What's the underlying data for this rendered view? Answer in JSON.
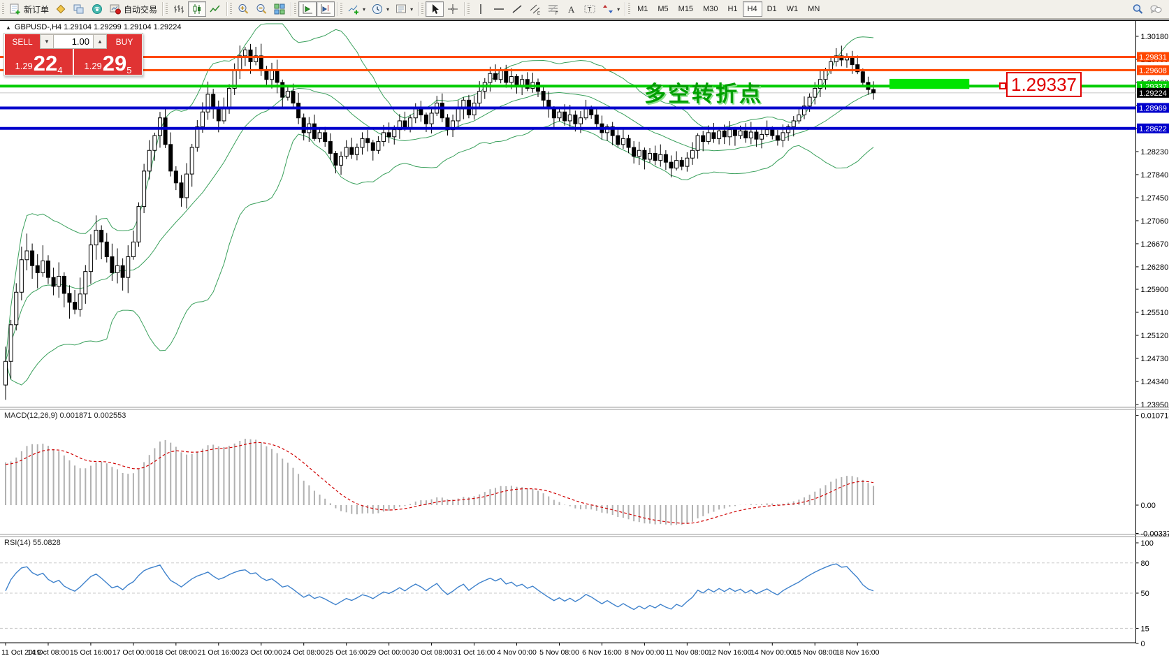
{
  "toolbar": {
    "groups": [
      {
        "items": [
          {
            "name": "new-order-button",
            "icon": "new-order",
            "label": "新订单"
          },
          {
            "name": "metaeditor-button",
            "icon": "metaeditor"
          },
          {
            "name": "charts-button",
            "icon": "charts"
          },
          {
            "name": "signals-button",
            "icon": "signals"
          },
          {
            "name": "autotrading-button",
            "icon": "autotrading",
            "label": "自动交易"
          }
        ]
      },
      {
        "items": [
          {
            "name": "bar-chart-button",
            "icon": "bar-chart"
          },
          {
            "name": "candlestick-button",
            "icon": "candlestick",
            "active": true
          },
          {
            "name": "line-chart-button",
            "icon": "line-chart"
          }
        ]
      },
      {
        "items": [
          {
            "name": "zoom-in-button",
            "icon": "zoom-in"
          },
          {
            "name": "zoom-out-button",
            "icon": "zoom-out"
          },
          {
            "name": "tile-windows-button",
            "icon": "tile-windows"
          }
        ]
      },
      {
        "items": [
          {
            "name": "auto-scroll-button",
            "icon": "auto-scroll",
            "active": true
          },
          {
            "name": "chart-shift-button",
            "icon": "chart-shift",
            "active": true
          }
        ]
      },
      {
        "items": [
          {
            "name": "indicators-button",
            "icon": "indicators",
            "caret": true
          },
          {
            "name": "periods-button",
            "icon": "periods",
            "caret": true
          },
          {
            "name": "templates-button",
            "icon": "templates",
            "caret": true
          }
        ]
      },
      {
        "items": [
          {
            "name": "cursor-button",
            "icon": "cursor",
            "active": true
          },
          {
            "name": "crosshair-button",
            "icon": "crosshair"
          }
        ]
      },
      {
        "items": [
          {
            "name": "vertical-line-button",
            "icon": "vertical-line"
          },
          {
            "name": "horizontal-line-button",
            "icon": "horizontal-line"
          },
          {
            "name": "trendline-button",
            "icon": "trendline"
          },
          {
            "name": "equidistant-channel-button",
            "icon": "equidistant-channel"
          },
          {
            "name": "fibonacci-button",
            "icon": "fibonacci"
          },
          {
            "name": "text-button",
            "icon": "text"
          },
          {
            "name": "text-label-button",
            "icon": "text-label"
          },
          {
            "name": "arrows-button",
            "icon": "arrows",
            "caret": true
          }
        ]
      }
    ],
    "timeframes": [
      "M1",
      "M5",
      "M15",
      "M30",
      "H1",
      "H4",
      "D1",
      "W1",
      "MN"
    ],
    "active_timeframe": "H4",
    "right_icons": [
      {
        "name": "search-button",
        "icon": "search"
      },
      {
        "name": "chat-button",
        "icon": "chat"
      }
    ]
  },
  "symbol_bar": {
    "text": "GBPUSD-,H4  1.29104 1.29299 1.29104 1.29224"
  },
  "trade_panel": {
    "sell_label": "SELL",
    "buy_label": "BUY",
    "volume": "1.00",
    "sell_price_small": "1.29",
    "sell_price_big": "22",
    "sell_price_sup": "4",
    "buy_price_small": "1.29",
    "buy_price_big": "29",
    "buy_price_sup": "5"
  },
  "annotations": {
    "turning_point_text": "多空转折点",
    "price_callout": "1.29337"
  },
  "chart_data": {
    "type": "candlestick",
    "symbol": "GBPUSD-",
    "timeframe": "H4",
    "ohlc_info": {
      "open": "1.29104",
      "high": "1.29299",
      "low": "1.29104",
      "close": "1.29224"
    },
    "y_ticks": [
      1.3018,
      1.2979,
      1.294,
      1.2901,
      1.2862,
      1.2823,
      1.2784,
      1.2745,
      1.2706,
      1.2667,
      1.2628,
      1.259,
      1.2551,
      1.2512,
      1.2473,
      1.2434,
      1.2395
    ],
    "price_levels": [
      {
        "price": 1.29831,
        "color": "#ff4700",
        "width": 3,
        "label_bg": "#ff4700"
      },
      {
        "price": 1.29608,
        "color": "#ff4700",
        "width": 3,
        "label_bg": "#ff4700"
      },
      {
        "price": 1.29337,
        "color": "#00cc00",
        "width": 4,
        "label_bg": "#00cc00"
      },
      {
        "price": 1.29224,
        "color": "#c8c8c8",
        "width": 1,
        "label_bg": "#000000",
        "under": true
      },
      {
        "price": 1.28969,
        "color": "#0000cc",
        "width": 4,
        "label_bg": "#0000cc"
      },
      {
        "price": 1.28622,
        "color": "#0000cc",
        "width": 4,
        "label_bg": "#0000cc"
      }
    ],
    "closes": [
      1.2468,
      1.253,
      1.2585,
      1.264,
      1.2655,
      1.263,
      1.2618,
      1.2638,
      1.261,
      1.2595,
      1.2612,
      1.2583,
      1.2568,
      1.2556,
      1.2582,
      1.262,
      1.2665,
      1.269,
      1.267,
      1.2645,
      1.2618,
      1.263,
      1.261,
      1.2645,
      1.267,
      1.273,
      1.279,
      1.2825,
      1.285,
      1.288,
      1.2835,
      1.279,
      1.277,
      1.2745,
      1.2785,
      1.283,
      1.2865,
      1.289,
      1.292,
      1.2895,
      1.2875,
      1.2895,
      1.293,
      1.296,
      1.2985,
      1.2995,
      1.2975,
      1.2985,
      1.296,
      1.2945,
      1.296,
      1.294,
      1.2915,
      1.2925,
      1.2905,
      1.288,
      1.2855,
      1.287,
      1.2845,
      1.2855,
      1.284,
      1.282,
      1.28,
      1.2815,
      1.283,
      1.2818,
      1.283,
      1.2845,
      1.2838,
      1.2825,
      1.284,
      1.2855,
      1.2848,
      1.286,
      1.2875,
      1.2862,
      1.288,
      1.2895,
      1.2885,
      1.287,
      1.2888,
      1.2905,
      1.288,
      1.286,
      1.2875,
      1.2895,
      1.291,
      1.2885,
      1.2905,
      1.2925,
      1.294,
      1.2955,
      1.2945,
      1.296,
      1.294,
      1.295,
      1.2935,
      1.2945,
      1.293,
      1.294,
      1.2925,
      1.291,
      1.2895,
      1.288,
      1.289,
      1.2875,
      1.2885,
      1.287,
      1.288,
      1.2895,
      1.2885,
      1.287,
      1.2855,
      1.2865,
      1.285,
      1.2835,
      1.2845,
      1.283,
      1.2815,
      1.2825,
      1.281,
      1.282,
      1.2808,
      1.2818,
      1.2805,
      1.2795,
      1.2808,
      1.2798,
      1.2812,
      1.2825,
      1.285,
      1.284,
      1.2855,
      1.2845,
      1.2858,
      1.2848,
      1.286,
      1.285,
      1.2858,
      1.2846,
      1.2856,
      1.2844,
      1.2852,
      1.286,
      1.285,
      1.2842,
      1.2855,
      1.2865,
      1.2875,
      1.2885,
      1.29,
      1.2915,
      1.293,
      1.2945,
      1.296,
      1.2975,
      1.2985,
      1.2978,
      1.2982,
      1.297,
      1.2958,
      1.294,
      1.2928,
      1.29224
    ],
    "bollinger": {
      "period": 20,
      "deviation": 2,
      "color": "#3aa05c"
    },
    "green_rect": {
      "col_start": 166,
      "col_end": 181,
      "top_price": 1.2946,
      "bottom_price": 1.2929,
      "color": "#00e400"
    },
    "macd": {
      "name": "MACD(12,26,9)",
      "value_main": "0.001871",
      "value_signal": "0.002553",
      "ticks": [
        {
          "v": 0.010713,
          "label": "0.010713"
        },
        {
          "v": 0,
          "label": "0.00"
        },
        {
          "v": -0.003373,
          "label": "-0.003373"
        }
      ],
      "histogram_color": "#b0b0b0",
      "signal_color": "#d00000"
    },
    "rsi": {
      "name": "RSI(14)",
      "value": "55.0828",
      "ticks": [
        {
          "v": 100,
          "label": "100"
        },
        {
          "v": 80,
          "label": "80"
        },
        {
          "v": 50,
          "label": "50"
        },
        {
          "v": 15,
          "label": "15"
        },
        {
          "v": 0,
          "label": "0"
        }
      ],
      "levels": [
        80,
        50,
        15
      ],
      "line_color": "#3f82cc"
    },
    "x_labels": [
      "11 Oct 2019",
      "14 Oct 08:00",
      "15 Oct 16:00",
      "17 Oct 00:00",
      "18 Oct 08:00",
      "21 Oct 16:00",
      "23 Oct 00:00",
      "24 Oct 08:00",
      "25 Oct 16:00",
      "29 Oct 00:00",
      "30 Oct 08:00",
      "31 Oct 16:00",
      "4 Nov 00:00",
      "5 Nov 08:00",
      "6 Nov 16:00",
      "8 Nov 00:00",
      "11 Nov 08:00",
      "12 Nov 16:00",
      "14 Nov 00:00",
      "15 Nov 08:00",
      "18 Nov 16:00"
    ]
  }
}
